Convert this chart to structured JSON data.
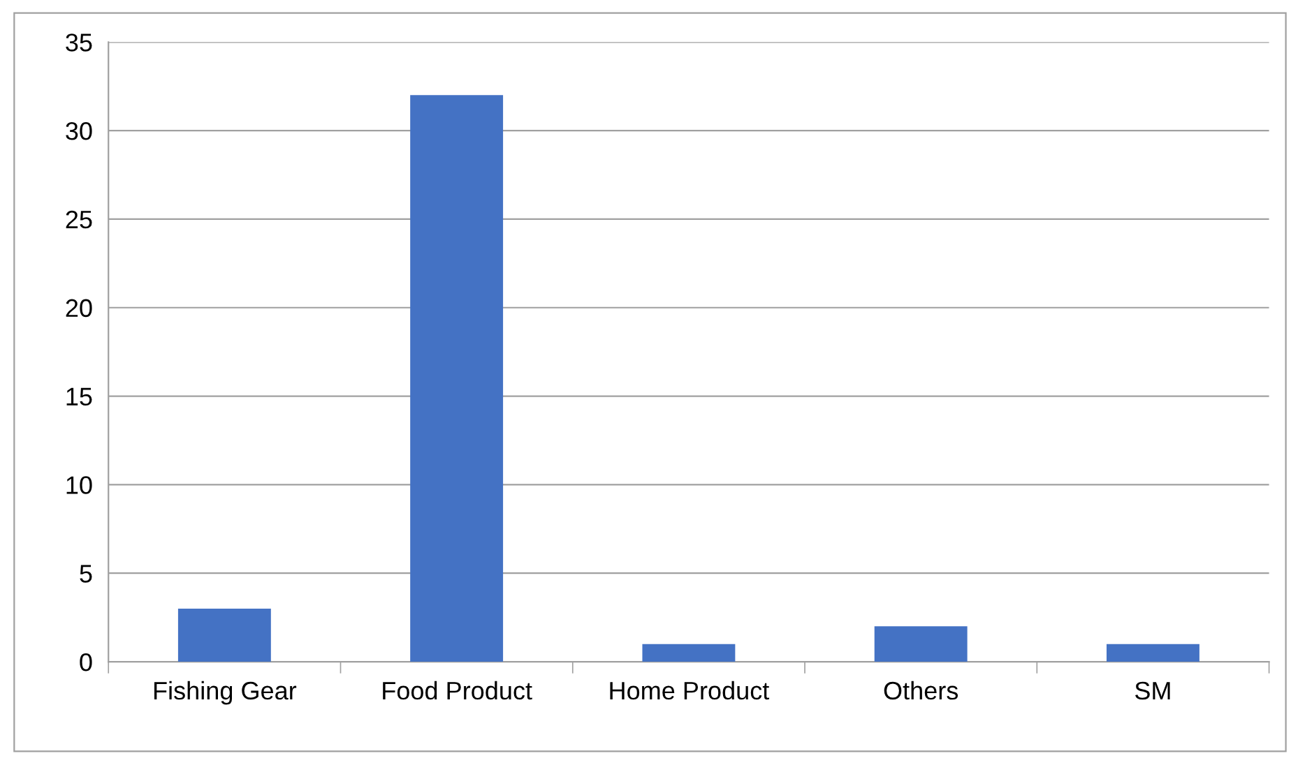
{
  "chart_data": {
    "type": "bar",
    "categories": [
      "Fishing Gear",
      "Food Product",
      "Home Product",
      "Others",
      "SM"
    ],
    "values": [
      3,
      32,
      1,
      2,
      1
    ],
    "color": "#4472c4",
    "ylim": [
      0,
      35
    ],
    "yticks": [
      0,
      5,
      10,
      15,
      20,
      25,
      30,
      35
    ],
    "grid": "y",
    "legend": false
  }
}
